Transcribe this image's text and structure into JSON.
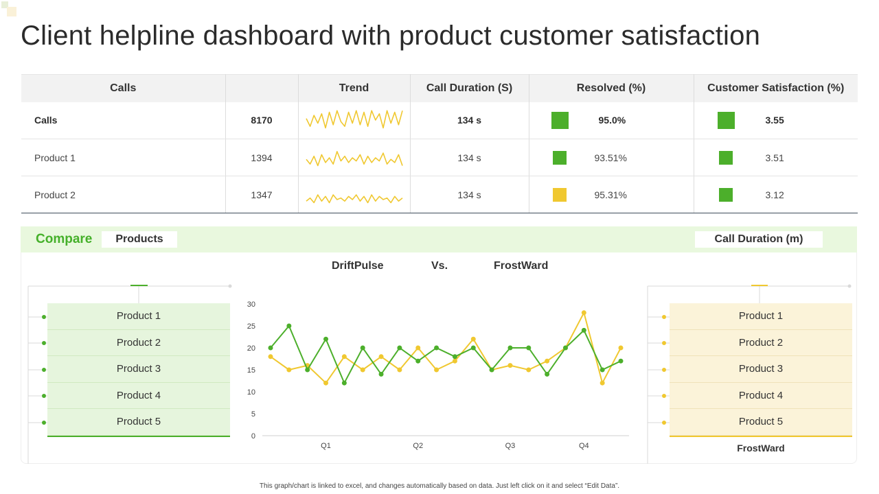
{
  "title": "Client helpline dashboard with product customer satisfaction",
  "colors": {
    "green": "#4caf2b",
    "yellow": "#f0c830",
    "header_bg": "#f2f2f2",
    "compare_bg": "#e9f8de"
  },
  "table": {
    "headers": [
      "Calls",
      "",
      "Trend",
      "Call Duration (S)",
      "Resolved (%)",
      "Customer Satisfaction (%)"
    ],
    "rows": [
      {
        "name": "Calls",
        "count": "8170",
        "trend": [
          8,
          3,
          10,
          5,
          11,
          2,
          12,
          4,
          13,
          6,
          3,
          12,
          5,
          13,
          4,
          12,
          3,
          13,
          7,
          11,
          2,
          13,
          5,
          12,
          4,
          13
        ],
        "duration": "134 s",
        "resolved_color": "green",
        "resolved": "95.0%",
        "satisfaction_color": "green",
        "satisfaction": "3.55"
      },
      {
        "name": "Product 1",
        "count": "1394",
        "trend": [
          6,
          3,
          8,
          2,
          9,
          4,
          7,
          3,
          11,
          5,
          8,
          4,
          7,
          5,
          9,
          3,
          8,
          4,
          7,
          5,
          10,
          3,
          6,
          4,
          9,
          2
        ],
        "duration": "134 s",
        "resolved_color": "green",
        "resolved": "93.51%",
        "satisfaction_color": "green",
        "satisfaction": "3.51"
      },
      {
        "name": "Product 2",
        "count": "1347",
        "trend": [
          3,
          5,
          2,
          7,
          3,
          6,
          2,
          7,
          4,
          5,
          3,
          6,
          4,
          7,
          3,
          6,
          2,
          7,
          3,
          6,
          4,
          5,
          2,
          6,
          3,
          5
        ],
        "duration": "134 s",
        "resolved_color": "yellow",
        "resolved": "95.31%",
        "satisfaction_color": "green",
        "satisfaction": "3.12"
      }
    ]
  },
  "compare": {
    "label": "Compare",
    "products_pill": "Products",
    "duration_pill": "Call Duration (m)",
    "series_a_name": "DriftPulse",
    "vs": "Vs.",
    "series_b_name": "FrostWard",
    "left_products": [
      "Product 1",
      "Product 2",
      "Product 3",
      "Product 4",
      "Product 5"
    ],
    "right_products": [
      "Product 1",
      "Product 2",
      "Product 3",
      "Product 4",
      "Product 5"
    ],
    "right_caption": "FrostWard"
  },
  "chart_data": {
    "type": "line",
    "title": "DriftPulse Vs. FrostWard",
    "xlabel": "",
    "ylabel": "",
    "ylim": [
      0,
      30
    ],
    "yticks": [
      0,
      5,
      10,
      15,
      20,
      25,
      30
    ],
    "x_tick_labels": [
      "Q1",
      "Q2",
      "Q3",
      "Q4"
    ],
    "x_tick_positions": [
      3,
      8,
      13,
      17
    ],
    "x": [
      0,
      1,
      2,
      3,
      4,
      5,
      6,
      7,
      8,
      9,
      10,
      11,
      12,
      13,
      14,
      15,
      16,
      17,
      18,
      19
    ],
    "series": [
      {
        "name": "DriftPulse",
        "color": "#4caf2b",
        "values": [
          20,
          25,
          15,
          22,
          12,
          20,
          14,
          20,
          17,
          20,
          18,
          20,
          15,
          20,
          20,
          14,
          20,
          24,
          15,
          17
        ]
      },
      {
        "name": "FrostWard",
        "color": "#f0c830",
        "values": [
          18,
          15,
          16,
          12,
          18,
          15,
          18,
          15,
          20,
          15,
          17,
          22,
          15,
          16,
          15,
          17,
          20,
          28,
          12,
          20
        ]
      }
    ]
  },
  "footer": "This graph/chart is linked to excel, and changes automatically based on data. Just left click on it and select “Edit Data”."
}
